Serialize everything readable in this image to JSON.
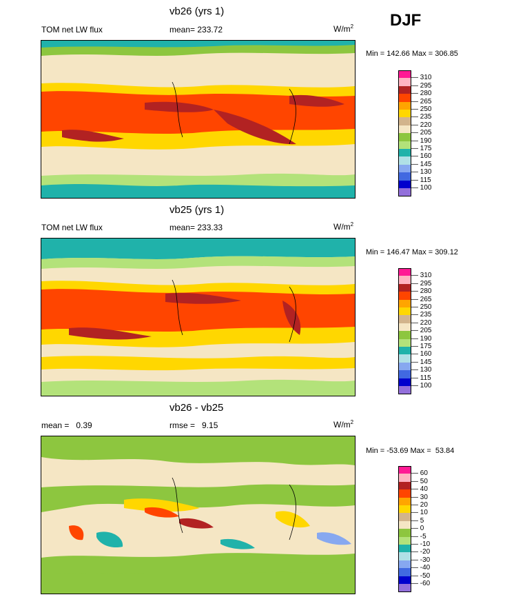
{
  "season": "DJF",
  "units": "W/m",
  "units_sup": "2",
  "chart_data": [
    {
      "type": "heatmap",
      "title": "vb26 (yrs 1)",
      "left_label": "TOM net LW flux",
      "center_label": "mean= 233.72",
      "minmax": "Min = 142.66 Max = 306.85",
      "min": 142.66,
      "max": 306.85,
      "mean": 233.72,
      "levels": [
        "310",
        "295",
        "280",
        "265",
        "250",
        "235",
        "220",
        "205",
        "190",
        "175",
        "160",
        "145",
        "130",
        "115",
        "100"
      ],
      "colors": [
        "#ff1a94",
        "#ffb3c1",
        "#b22222",
        "#ff4500",
        "#ffa500",
        "#ffd700",
        "#d2b48c",
        "#f5e6c4",
        "#8dc63f",
        "#b3e27a",
        "#20b2aa",
        "#b0e0e6",
        "#87a8f0",
        "#4169e1",
        "#0000cd",
        "#9370db"
      ]
    },
    {
      "type": "heatmap",
      "title": "vb25 (yrs 1)",
      "left_label": "TOM net LW flux",
      "center_label": "mean= 233.33",
      "minmax": "Min = 146.47 Max = 309.12",
      "min": 146.47,
      "max": 309.12,
      "mean": 233.33,
      "levels": [
        "310",
        "295",
        "280",
        "265",
        "250",
        "235",
        "220",
        "205",
        "190",
        "175",
        "160",
        "145",
        "130",
        "115",
        "100"
      ],
      "colors": [
        "#ff1a94",
        "#ffb3c1",
        "#b22222",
        "#ff4500",
        "#ffa500",
        "#ffd700",
        "#d2b48c",
        "#f5e6c4",
        "#8dc63f",
        "#b3e27a",
        "#20b2aa",
        "#b0e0e6",
        "#87a8f0",
        "#4169e1",
        "#0000cd",
        "#9370db"
      ]
    },
    {
      "type": "heatmap",
      "title": "vb26 - vb25",
      "left_label": "mean =   0.39",
      "center_label": "rmse =   9.15",
      "minmax": "Min = -53.69 Max =  53.84",
      "min": -53.69,
      "max": 53.84,
      "mean": 0.39,
      "rmse": 9.15,
      "levels": [
        "60",
        "50",
        "40",
        "30",
        "20",
        "10",
        "5",
        "0",
        "-5",
        "-10",
        "-20",
        "-30",
        "-40",
        "-50",
        "-60"
      ],
      "colors": [
        "#ff1a94",
        "#ffb3c1",
        "#b22222",
        "#ff4500",
        "#ffa500",
        "#ffd700",
        "#d2b48c",
        "#f5e6c4",
        "#8dc63f",
        "#b3e27a",
        "#20b2aa",
        "#b0e0e6",
        "#87a8f0",
        "#4169e1",
        "#0000cd",
        "#9370db"
      ]
    }
  ]
}
